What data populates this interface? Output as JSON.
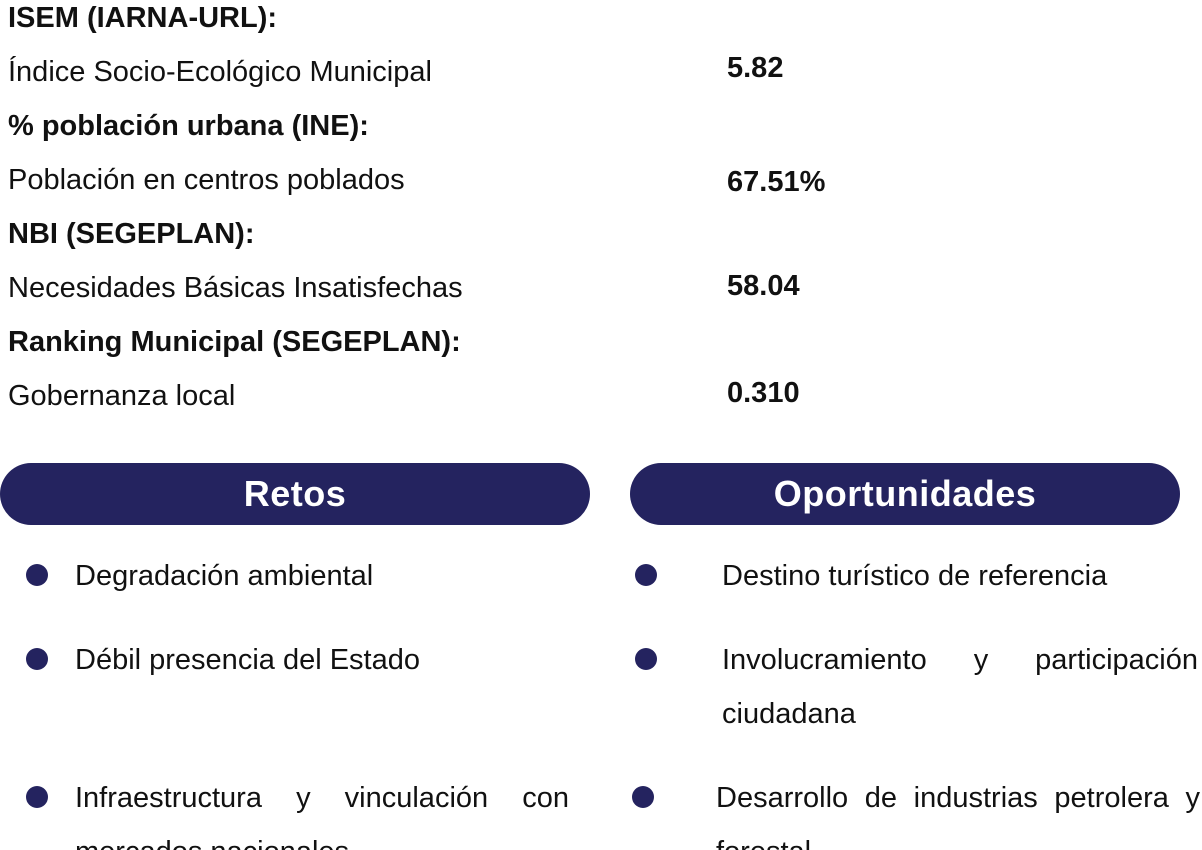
{
  "indicators": [
    {
      "heading": "ISEM (IARNA-URL):",
      "description": "Índice Socio-Ecológico Municipal",
      "value": "5.82"
    },
    {
      "heading": "% población urbana (INE):",
      "description": "Población en centros poblados",
      "value": "67.51%"
    },
    {
      "heading": "NBI (SEGEPLAN):",
      "description": "Necesidades Básicas Insatisfechas",
      "value": "58.04"
    },
    {
      "heading": "Ranking Municipal (SEGEPLAN):",
      "description": "Gobernanza local",
      "value": "0.310"
    }
  ],
  "retos": {
    "title": "Retos",
    "items": [
      "Degradación ambiental",
      "Débil presencia del Estado",
      "Infraestructura y vinculación con mercados nacionales"
    ]
  },
  "oportunidades": {
    "title": "Oportunidades",
    "items": [
      "Destino turístico de referencia",
      "Involucramiento y participación ciudadana",
      "Desarrollo de industrias petrolera y forestal"
    ]
  },
  "colors": {
    "accent": "#24235f",
    "text": "#111111"
  }
}
